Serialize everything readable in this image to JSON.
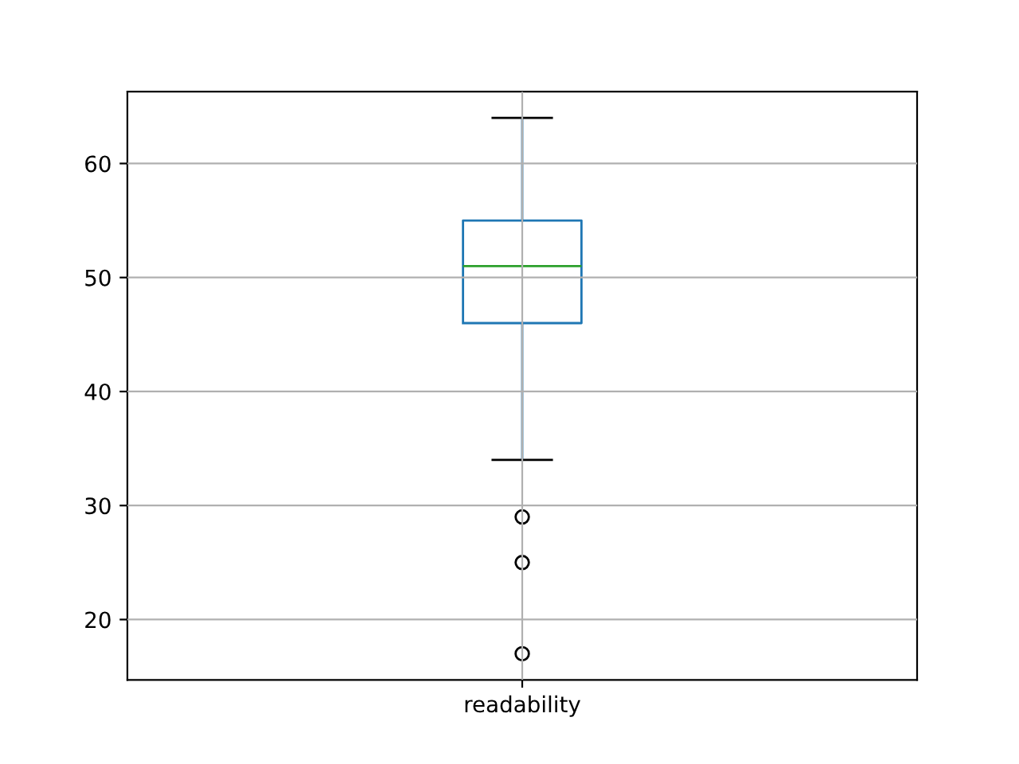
{
  "chart_data": {
    "type": "box",
    "categories": [
      "readability"
    ],
    "series": [
      {
        "color": "#1f77b4",
        "boxes": [
          {
            "low": 34,
            "q1": 46,
            "median": 51,
            "q3": 55,
            "high": 64,
            "outliers": [
              29,
              25,
              17
            ]
          }
        ]
      }
    ],
    "ylim": [
      14.7,
      66.3
    ],
    "yticks": [
      20,
      30,
      40,
      50,
      60
    ],
    "grid": true
  }
}
